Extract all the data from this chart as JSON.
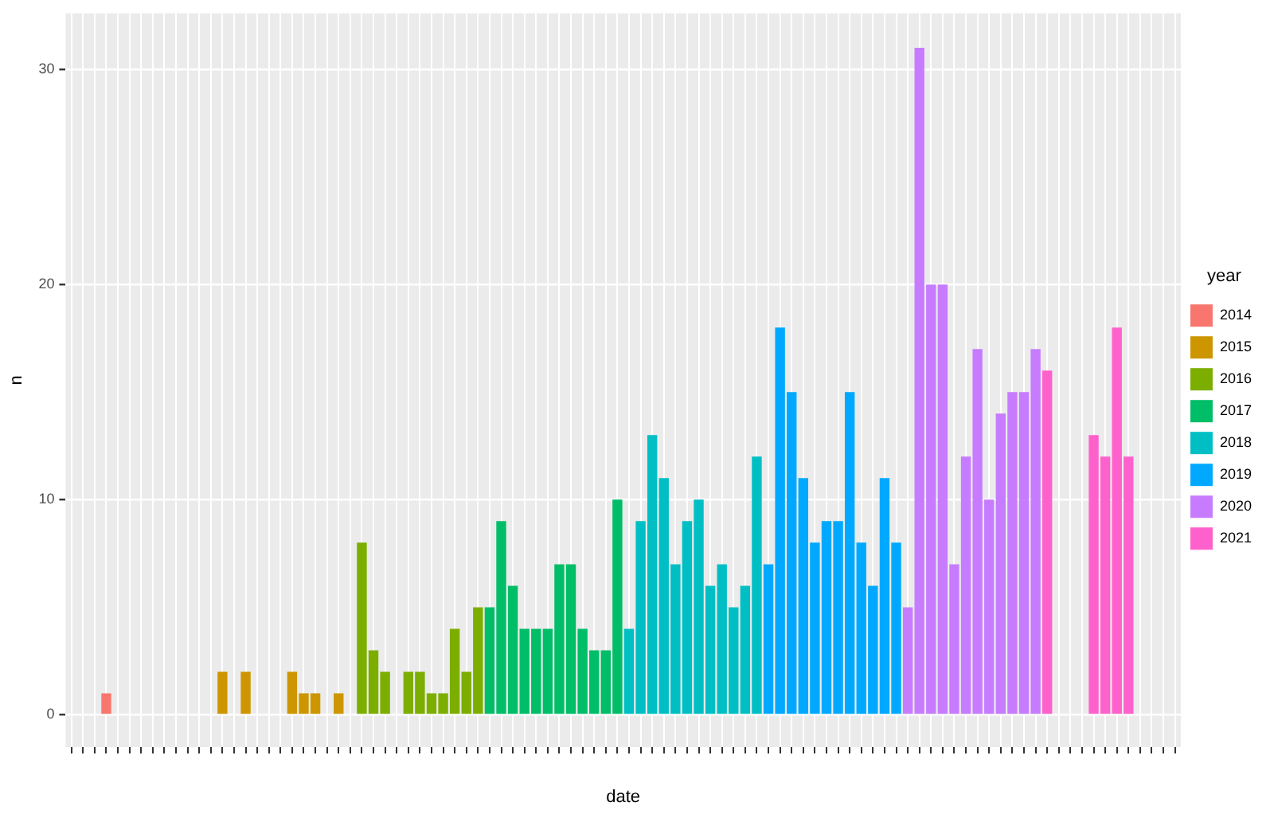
{
  "chart_data": {
    "type": "bar",
    "xlabel": "date",
    "ylabel": "n",
    "legend_title": "year",
    "legend": "right",
    "grid": true,
    "categories": [
      null,
      null,
      null,
      null,
      null,
      null,
      null,
      null,
      null,
      null,
      null,
      null,
      null,
      null,
      null,
      null,
      null,
      null,
      null,
      null,
      null,
      null,
      null,
      null,
      null,
      null,
      null,
      null,
      null,
      null,
      null,
      null,
      null,
      null,
      null,
      null,
      null,
      null,
      null,
      null,
      null,
      null,
      null,
      null,
      null,
      null,
      null,
      null,
      null,
      null,
      null,
      null,
      null,
      null,
      null,
      null,
      null,
      null,
      null,
      null,
      null,
      null,
      null,
      null,
      null,
      null,
      null,
      null,
      null,
      null,
      null,
      null,
      null,
      null,
      null,
      null,
      null,
      null,
      null,
      null,
      null,
      null,
      null,
      null,
      null,
      null,
      null,
      null,
      null,
      null,
      null,
      null,
      null,
      null,
      null,
      null
    ],
    "ylim": [
      -1.5,
      32.6
    ],
    "yticks": [
      0,
      10,
      20,
      30
    ],
    "series": [
      {
        "name": "2014",
        "color": "#f8766d",
        "values": [
          null,
          null,
          null,
          1,
          null,
          null,
          null,
          null,
          null,
          null,
          null,
          null,
          null,
          null,
          null,
          null,
          null,
          null,
          null,
          null,
          null,
          null,
          null,
          null,
          null,
          null,
          null,
          null,
          null,
          null,
          null,
          null,
          null,
          null,
          null,
          null,
          null,
          null,
          null,
          null,
          null,
          null,
          null,
          null,
          null,
          null,
          null,
          null,
          null,
          null,
          null,
          null,
          null,
          null,
          null,
          null,
          null,
          null,
          null,
          null,
          null,
          null,
          null,
          null,
          null,
          null,
          null,
          null,
          null,
          null,
          null,
          null,
          null,
          null,
          null,
          null,
          null,
          null,
          null,
          null,
          null,
          null,
          null,
          null,
          null,
          null,
          null,
          null,
          null,
          null,
          null,
          null,
          null,
          null,
          null,
          null
        ]
      },
      {
        "name": "2015",
        "color": "#cd9600",
        "values": [
          null,
          null,
          null,
          null,
          null,
          null,
          null,
          null,
          null,
          null,
          null,
          null,
          null,
          2,
          null,
          2,
          null,
          null,
          null,
          2,
          1,
          1,
          null,
          1,
          null,
          null,
          null,
          null,
          null,
          null,
          null,
          null,
          null,
          null,
          null,
          null,
          null,
          null,
          null,
          null,
          null,
          null,
          null,
          null,
          null,
          null,
          null,
          null,
          null,
          null,
          null,
          null,
          null,
          null,
          null,
          null,
          null,
          null,
          null,
          null,
          null,
          null,
          null,
          null,
          null,
          null,
          null,
          null,
          null,
          null,
          null,
          null,
          null,
          null,
          null,
          null,
          null,
          null,
          null,
          null,
          null,
          null,
          null,
          null,
          null,
          null,
          null,
          null,
          null,
          null,
          null,
          null,
          null,
          null,
          null,
          null
        ]
      },
      {
        "name": "2016",
        "color": "#7cae00",
        "values": [
          null,
          null,
          null,
          null,
          null,
          null,
          null,
          null,
          null,
          null,
          null,
          null,
          null,
          null,
          null,
          null,
          null,
          null,
          null,
          null,
          null,
          null,
          null,
          null,
          null,
          8,
          3,
          2,
          null,
          2,
          2,
          1,
          1,
          4,
          2,
          5,
          null,
          null,
          null,
          null,
          null,
          null,
          null,
          null,
          null,
          null,
          null,
          null,
          null,
          null,
          null,
          null,
          null,
          null,
          null,
          null,
          null,
          null,
          null,
          null,
          null,
          null,
          null,
          null,
          null,
          null,
          null,
          null,
          null,
          null,
          null,
          null,
          null,
          null,
          null,
          null,
          null,
          null,
          null,
          null,
          null,
          null,
          null,
          null,
          null,
          null,
          null,
          null,
          null,
          null,
          null,
          null,
          null,
          null,
          null,
          null
        ]
      },
      {
        "name": "2017",
        "color": "#00be67",
        "values": [
          null,
          null,
          null,
          null,
          null,
          null,
          null,
          null,
          null,
          null,
          null,
          null,
          null,
          null,
          null,
          null,
          null,
          null,
          null,
          null,
          null,
          null,
          null,
          null,
          null,
          null,
          null,
          null,
          null,
          null,
          null,
          null,
          null,
          null,
          null,
          null,
          5,
          9,
          6,
          4,
          4,
          4,
          7,
          7,
          4,
          3,
          3,
          10,
          null,
          null,
          null,
          null,
          null,
          null,
          null,
          null,
          null,
          null,
          null,
          null,
          null,
          null,
          null,
          null,
          null,
          null,
          null,
          null,
          null,
          null,
          null,
          null,
          null,
          null,
          null,
          null,
          null,
          null,
          null,
          null,
          null,
          null,
          null,
          null,
          null,
          null,
          null,
          null,
          null,
          null,
          null,
          null,
          null,
          null,
          null,
          null
        ]
      },
      {
        "name": "2018",
        "color": "#00bfc4",
        "values": [
          null,
          null,
          null,
          null,
          null,
          null,
          null,
          null,
          null,
          null,
          null,
          null,
          null,
          null,
          null,
          null,
          null,
          null,
          null,
          null,
          null,
          null,
          null,
          null,
          null,
          null,
          null,
          null,
          null,
          null,
          null,
          null,
          null,
          null,
          null,
          null,
          null,
          null,
          null,
          null,
          null,
          null,
          null,
          null,
          null,
          null,
          null,
          null,
          4,
          9,
          13,
          11,
          7,
          9,
          10,
          6,
          7,
          5,
          6,
          12,
          null,
          null,
          null,
          null,
          null,
          null,
          null,
          null,
          null,
          null,
          null,
          null,
          null,
          null,
          null,
          null,
          null,
          null,
          null,
          null,
          null,
          null,
          null,
          null,
          null,
          null,
          null,
          null,
          null,
          null,
          null,
          null,
          null,
          null,
          null,
          null
        ]
      },
      {
        "name": "2019",
        "color": "#00a9ff",
        "values": [
          null,
          null,
          null,
          null,
          null,
          null,
          null,
          null,
          null,
          null,
          null,
          null,
          null,
          null,
          null,
          null,
          null,
          null,
          null,
          null,
          null,
          null,
          null,
          null,
          null,
          null,
          null,
          null,
          null,
          null,
          null,
          null,
          null,
          null,
          null,
          null,
          null,
          null,
          null,
          null,
          null,
          null,
          null,
          null,
          null,
          null,
          null,
          null,
          null,
          null,
          null,
          null,
          null,
          null,
          null,
          null,
          null,
          null,
          null,
          null,
          7,
          18,
          15,
          11,
          8,
          9,
          9,
          15,
          8,
          6,
          11,
          8,
          null,
          null,
          null,
          null,
          null,
          null,
          null,
          null,
          null,
          null,
          null,
          null,
          null,
          null,
          null,
          null,
          null,
          null,
          null,
          null,
          null,
          null,
          null,
          null
        ]
      },
      {
        "name": "2020",
        "color": "#c77cff",
        "values": [
          null,
          null,
          null,
          null,
          null,
          null,
          null,
          null,
          null,
          null,
          null,
          null,
          null,
          null,
          null,
          null,
          null,
          null,
          null,
          null,
          null,
          null,
          null,
          null,
          null,
          null,
          null,
          null,
          null,
          null,
          null,
          null,
          null,
          null,
          null,
          null,
          null,
          null,
          null,
          null,
          null,
          null,
          null,
          null,
          null,
          null,
          null,
          null,
          null,
          null,
          null,
          null,
          null,
          null,
          null,
          null,
          null,
          null,
          null,
          null,
          null,
          null,
          null,
          null,
          null,
          null,
          null,
          null,
          null,
          null,
          null,
          null,
          5,
          31,
          20,
          20,
          7,
          12,
          17,
          10,
          14,
          15,
          15,
          17,
          null,
          null,
          null,
          null,
          null,
          null,
          null,
          null,
          null,
          null,
          null,
          null
        ]
      },
      {
        "name": "2021",
        "color": "#ff61cc",
        "values": [
          null,
          null,
          null,
          null,
          null,
          null,
          null,
          null,
          null,
          null,
          null,
          null,
          null,
          null,
          null,
          null,
          null,
          null,
          null,
          null,
          null,
          null,
          null,
          null,
          null,
          null,
          null,
          null,
          null,
          null,
          null,
          null,
          null,
          null,
          null,
          null,
          null,
          null,
          null,
          null,
          null,
          null,
          null,
          null,
          null,
          null,
          null,
          null,
          null,
          null,
          null,
          null,
          null,
          null,
          null,
          null,
          null,
          null,
          null,
          null,
          null,
          null,
          null,
          null,
          null,
          null,
          null,
          null,
          null,
          null,
          null,
          null,
          null,
          null,
          null,
          null,
          null,
          null,
          null,
          null,
          null,
          null,
          null,
          null,
          16,
          null,
          null,
          null,
          13,
          12,
          18,
          12,
          null,
          null,
          null,
          null
        ]
      }
    ]
  }
}
